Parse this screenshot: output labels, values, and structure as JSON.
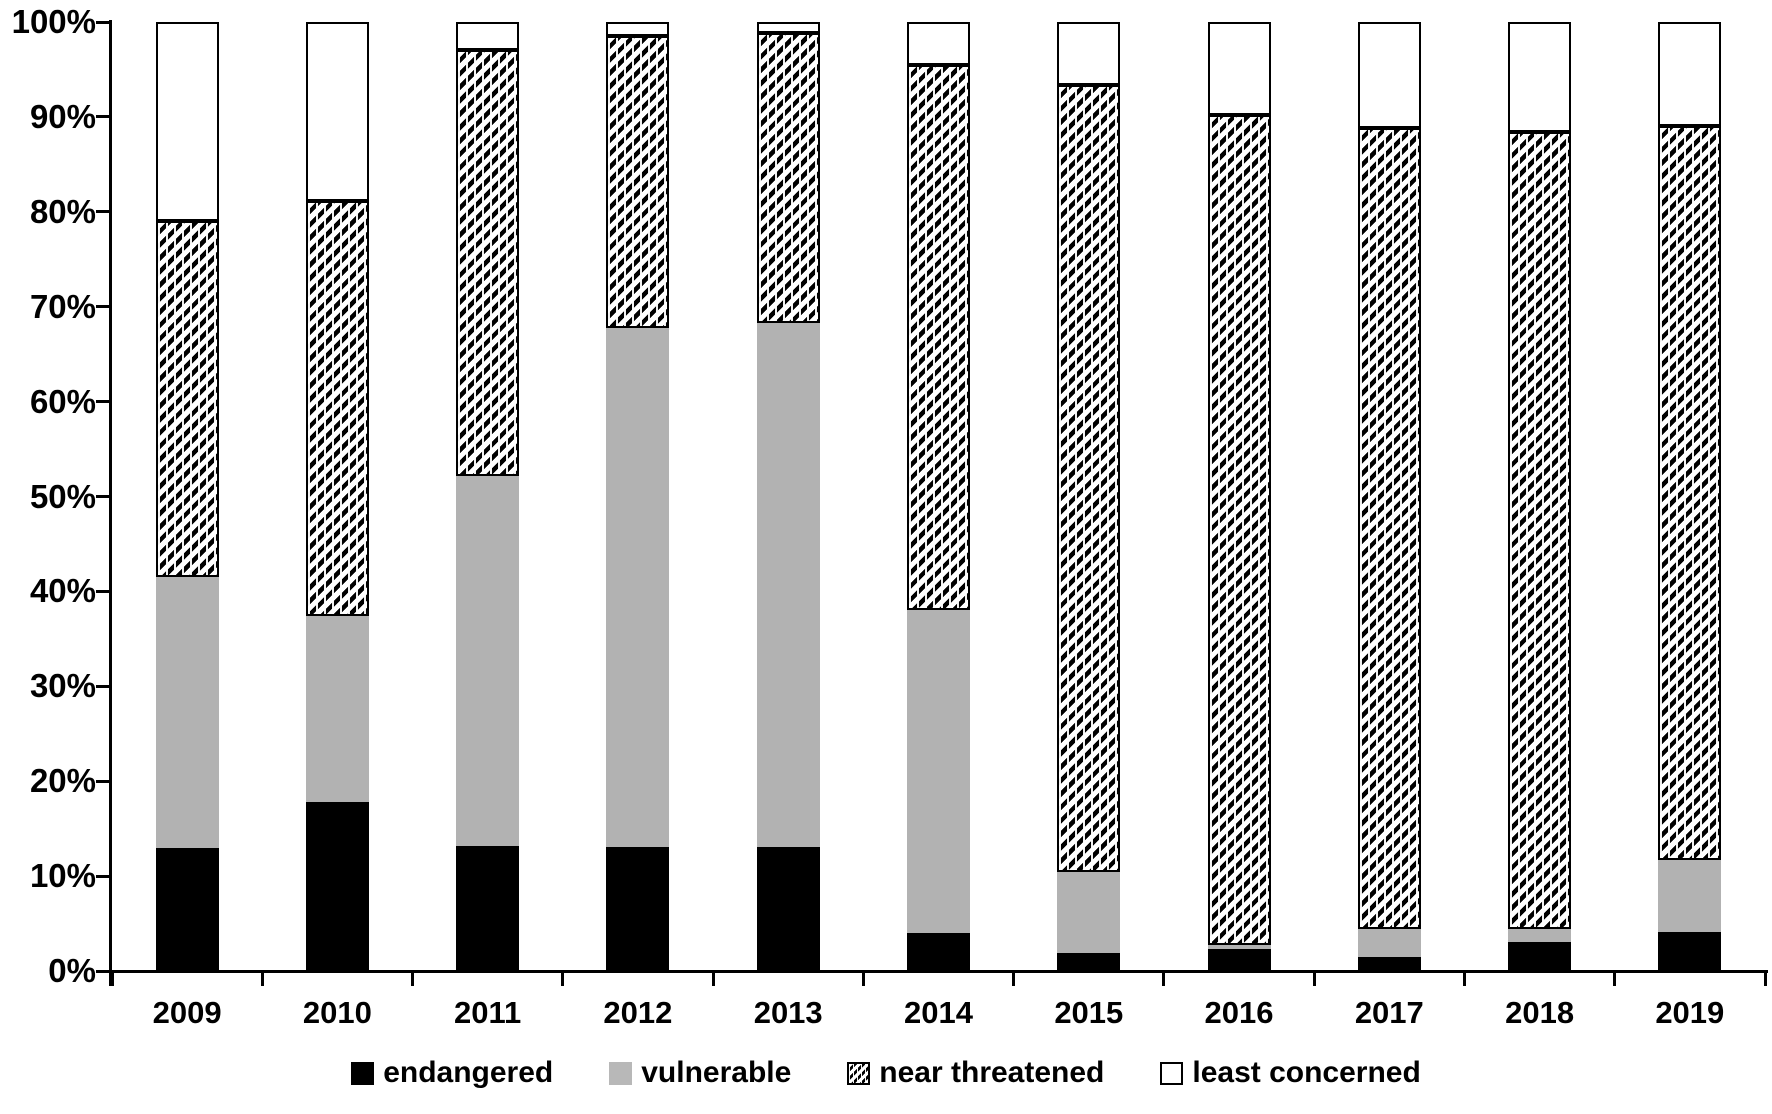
{
  "figure": {
    "background": "#ffffff"
  },
  "colors": {
    "endangered": "#000000",
    "vulnerable": "#b2b2b2",
    "near_threatened": "hatch-diagonal-black-on-white",
    "least_concerned": "#ffffff",
    "axis": "#000000"
  },
  "chart_data": {
    "type": "bar",
    "stacked": true,
    "units": "percent",
    "title": "",
    "xlabel": "",
    "ylabel": "",
    "grid": false,
    "ylim": [
      0,
      100
    ],
    "categories": [
      "2009",
      "2010",
      "2011",
      "2012",
      "2013",
      "2014",
      "2015",
      "2016",
      "2017",
      "2018",
      "2019"
    ],
    "series": [
      {
        "name": "endangered",
        "style": "solid-black",
        "values": [
          13.0,
          17.8,
          13.2,
          13.1,
          13.1,
          4.0,
          1.9,
          2.3,
          1.5,
          3.1,
          4.1
        ]
      },
      {
        "name": "vulnerable",
        "style": "solid-gray",
        "values": [
          28.5,
          19.6,
          39.0,
          54.6,
          55.2,
          34.0,
          8.5,
          0.4,
          2.9,
          1.3,
          7.6
        ]
      },
      {
        "name": "near threatened",
        "style": "hatch",
        "values": [
          37.5,
          43.7,
          44.9,
          30.8,
          30.5,
          57.5,
          83.0,
          87.5,
          84.4,
          84.0,
          77.3
        ]
      },
      {
        "name": "least concerned",
        "style": "white-outline",
        "values": [
          21.0,
          18.9,
          2.9,
          1.5,
          1.2,
          4.5,
          6.6,
          9.8,
          11.2,
          11.6,
          11.0
        ]
      }
    ],
    "y_axis": {
      "tick_labels": [
        "0%",
        "10%",
        "20%",
        "30%",
        "40%",
        "50%",
        "60%",
        "70%",
        "80%",
        "90%",
        "100%"
      ]
    },
    "legend": {
      "position": "bottom",
      "items": [
        "endangered",
        "vulnerable",
        "near threatened",
        "least concerned"
      ]
    }
  }
}
